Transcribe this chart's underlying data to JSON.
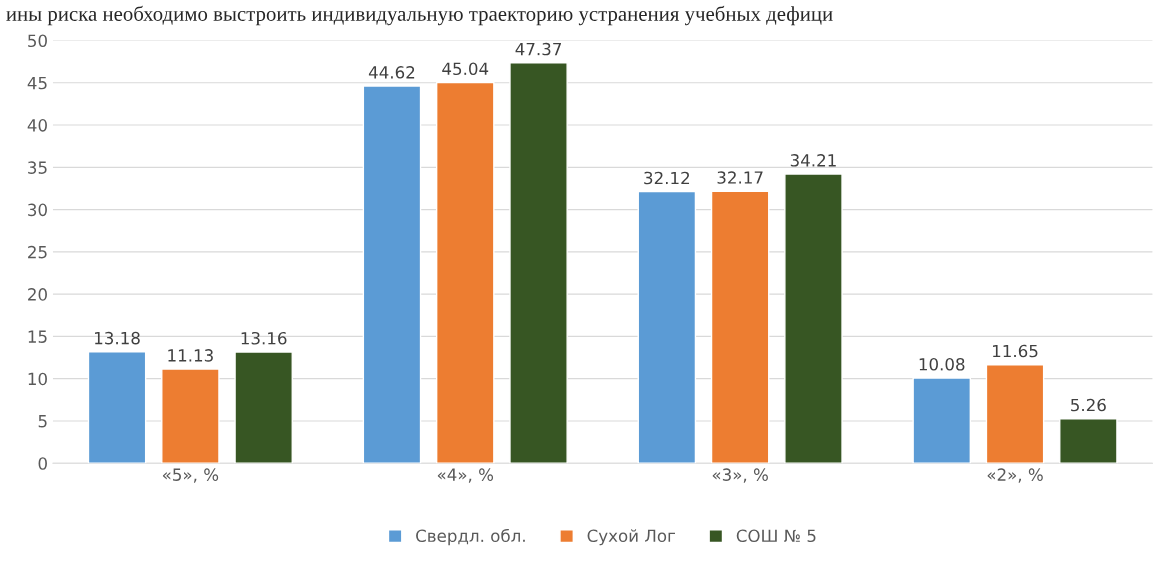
{
  "chart_data": {
    "type": "bar",
    "annotations": [
      "ины риска необходимо выстроить индивидуальную траекторию устранения учебных дефици"
    ],
    "categories": [
      "«5», %",
      "«4», %",
      "«3», %",
      "«2», %"
    ],
    "series": [
      {
        "name": "Свердл. обл.",
        "color": "#5b9bd5",
        "values": [
          13.18,
          44.62,
          32.12,
          10.08
        ]
      },
      {
        "name": "Сухой Лог",
        "color": "#ed7d31",
        "values": [
          11.13,
          45.04,
          32.17,
          11.65
        ]
      },
      {
        "name": "СОШ № 5",
        "color": "#375623",
        "values": [
          13.16,
          47.37,
          34.21,
          5.26
        ]
      }
    ],
    "ylim": [
      0,
      50
    ],
    "yticks": [
      0,
      5,
      10,
      15,
      20,
      25,
      30,
      35,
      40,
      45,
      50
    ],
    "grid": "y",
    "legend": "bottom",
    "data_labels": true
  }
}
